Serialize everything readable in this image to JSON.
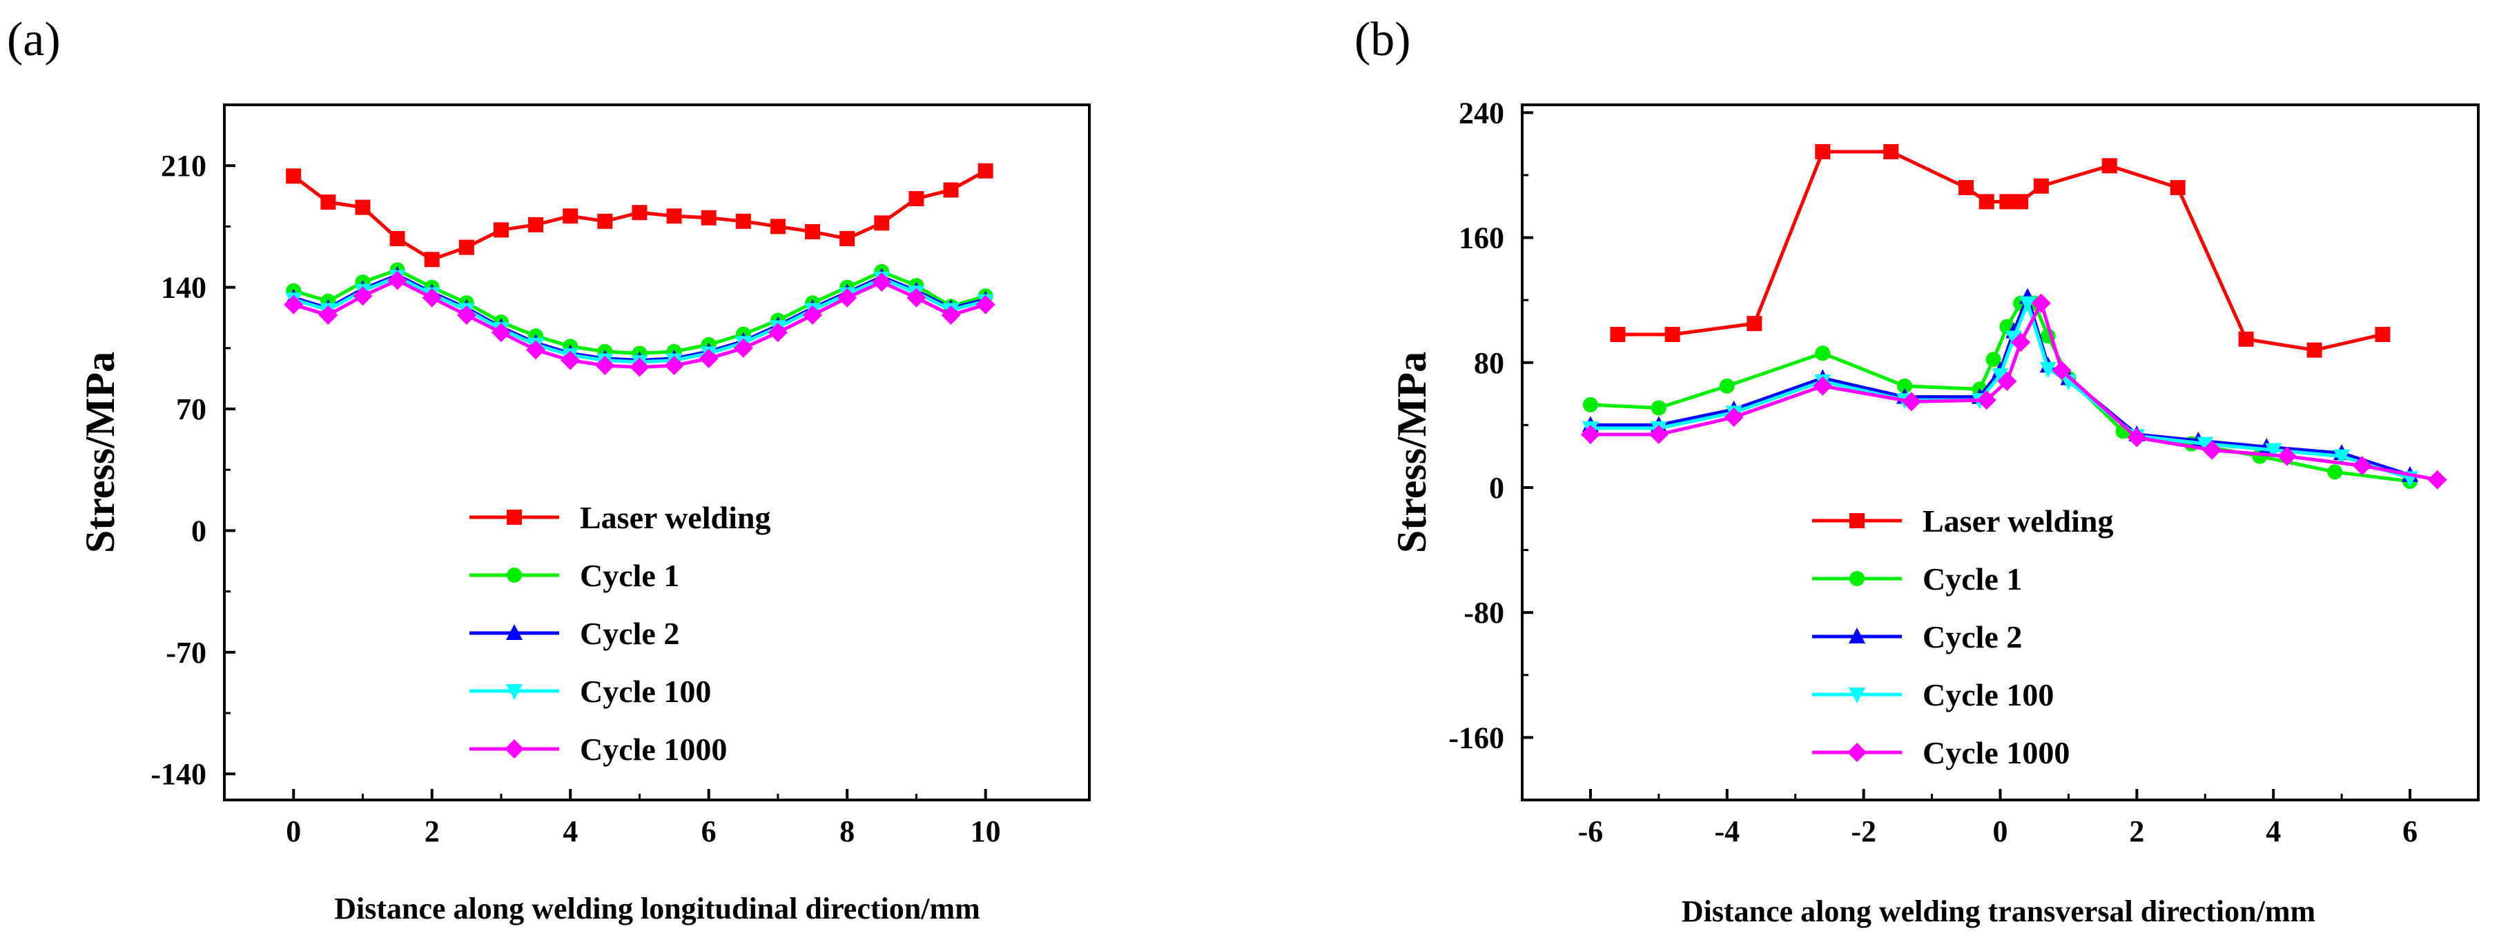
{
  "chart_data": [
    {
      "type": "line",
      "panel_label": "(a)",
      "title": "",
      "xlabel": "Distance along welding longitudinal direction/mm",
      "ylabel": "Stress/MPa",
      "xlim": [
        -1,
        11.5
      ],
      "ylim": [
        -155,
        245
      ],
      "xticks": [
        0,
        2,
        4,
        6,
        8,
        10
      ],
      "xtick_labels": [
        "0",
        "2",
        "4",
        "6",
        "8",
        "10"
      ],
      "yticks": [
        -140,
        -70,
        0,
        70,
        140,
        210
      ],
      "ytick_labels": [
        "-140",
        "-70",
        "0",
        "70",
        "140",
        "210"
      ],
      "grid": false,
      "legend_position": "bottom-center",
      "series": [
        {
          "name": "Laser welding",
          "color": "#ff0000",
          "marker": "square",
          "x": [
            0,
            0.5,
            1,
            1.5,
            2,
            2.5,
            3,
            3.5,
            4,
            4.5,
            5,
            5.5,
            6,
            6.5,
            7,
            7.5,
            8,
            8.5,
            9,
            9.5,
            10
          ],
          "y": [
            204,
            189,
            186,
            168,
            156,
            163,
            173,
            176,
            181,
            178,
            183,
            181,
            180,
            178,
            175,
            172,
            168,
            177,
            191,
            196,
            207
          ]
        },
        {
          "name": "Cycle 1",
          "color": "#00ee00",
          "marker": "circle",
          "x": [
            0,
            0.5,
            1,
            1.5,
            2,
            2.5,
            3,
            3.5,
            4,
            4.5,
            5,
            5.5,
            6,
            6.5,
            7,
            7.5,
            8,
            8.5,
            9,
            9.5,
            10
          ],
          "y": [
            138,
            132,
            143,
            150,
            140,
            131,
            120,
            112,
            106,
            103,
            102,
            103,
            107,
            113,
            121,
            131,
            140,
            149,
            141,
            129,
            135
          ]
        },
        {
          "name": "Cycle 2",
          "color": "#0000ff",
          "marker": "triangle-up",
          "x": [
            0,
            0.5,
            1,
            1.5,
            2,
            2.5,
            3,
            3.5,
            4,
            4.5,
            5,
            5.5,
            6,
            6.5,
            7,
            7.5,
            8,
            8.5,
            9,
            9.5,
            10
          ],
          "y": [
            134,
            128,
            139,
            147,
            137,
            128,
            117,
            108,
            102,
            99,
            98,
            99,
            103,
            109,
            118,
            128,
            137,
            146,
            138,
            128,
            133
          ]
        },
        {
          "name": "Cycle 100",
          "color": "#00ffff",
          "marker": "triangle-down",
          "x": [
            0,
            0.5,
            1,
            1.5,
            2,
            2.5,
            3,
            3.5,
            4,
            4.5,
            5,
            5.5,
            6,
            6.5,
            7,
            7.5,
            8,
            8.5,
            9,
            9.5,
            10
          ],
          "y": [
            133,
            127,
            138,
            146,
            136,
            127,
            116,
            107,
            101,
            98,
            97,
            98,
            102,
            108,
            117,
            127,
            136,
            145,
            137,
            127,
            132
          ]
        },
        {
          "name": "Cycle 1000",
          "color": "#ff00ff",
          "marker": "diamond",
          "x": [
            0,
            0.5,
            1,
            1.5,
            2,
            2.5,
            3,
            3.5,
            4,
            4.5,
            5,
            5.5,
            6,
            6.5,
            7,
            7.5,
            8,
            8.5,
            9,
            9.5,
            10
          ],
          "y": [
            130,
            124,
            135,
            144,
            134,
            124,
            114,
            104,
            98,
            95,
            94,
            95,
            99,
            105,
            114,
            124,
            134,
            143,
            134,
            124,
            130
          ]
        }
      ]
    },
    {
      "type": "line",
      "panel_label": "(b)",
      "title": "",
      "xlabel": "Distance along welding transversal direction/mm",
      "ylabel": "Stress/MPa",
      "xlim": [
        -7,
        7
      ],
      "ylim": [
        -200,
        245
      ],
      "xticks": [
        -6,
        -4,
        -2,
        0,
        2,
        4,
        6
      ],
      "xtick_labels": [
        "-6",
        "-4",
        "-2",
        "0",
        "2",
        "4",
        "6"
      ],
      "yticks": [
        -160,
        -80,
        0,
        80,
        160,
        240
      ],
      "ytick_labels": [
        "-160",
        "-80",
        "0",
        "80",
        "160",
        "240"
      ],
      "grid": false,
      "legend_position": "bottom-center",
      "series": [
        {
          "name": "Laser welding",
          "color": "#ff0000",
          "marker": "square",
          "x": [
            -5.6,
            -4.8,
            -3.6,
            -2.6,
            -1.6,
            -0.5,
            -0.2,
            0.1,
            0.3,
            0.6,
            1.6,
            2.6,
            3.6,
            4.6,
            5.6
          ],
          "y": [
            98,
            98,
            105,
            215,
            215,
            192,
            183,
            183,
            183,
            193,
            206,
            192,
            95,
            88,
            98
          ]
        },
        {
          "name": "Cycle 1",
          "color": "#00ee00",
          "marker": "circle",
          "x": [
            -6,
            -5,
            -4,
            -2.6,
            -1.4,
            -0.3,
            -0.1,
            0.1,
            0.3,
            0.5,
            0.7,
            1.0,
            1.8,
            2.8,
            3.8,
            4.9,
            6
          ],
          "y": [
            53,
            51,
            65,
            86,
            65,
            63,
            82,
            103,
            118,
            118,
            97,
            70,
            36,
            28,
            20,
            10,
            4
          ]
        },
        {
          "name": "Cycle 2",
          "color": "#0000ff",
          "marker": "triangle-up",
          "x": [
            -6,
            -5,
            -3.9,
            -2.6,
            -1.4,
            -0.3,
            0,
            0.2,
            0.4,
            0.7,
            1.0,
            2.0,
            2.9,
            3.9,
            5.0,
            6
          ],
          "y": [
            40,
            40,
            50,
            70,
            58,
            58,
            75,
            100,
            122,
            78,
            70,
            34,
            30,
            26,
            22,
            8
          ]
        },
        {
          "name": "Cycle 100",
          "color": "#00ffff",
          "marker": "triangle-down",
          "x": [
            -6,
            -5,
            -3.9,
            -2.6,
            -1.4,
            -0.3,
            0,
            0.2,
            0.4,
            0.7,
            1.0,
            2.0,
            3.0,
            4.0,
            5.0,
            6
          ],
          "y": [
            38,
            38,
            48,
            68,
            56,
            56,
            72,
            96,
            118,
            76,
            68,
            33,
            28,
            24,
            20,
            6
          ]
        },
        {
          "name": "Cycle 1000",
          "color": "#ff00ff",
          "marker": "diamond",
          "x": [
            -6,
            -5,
            -3.9,
            -2.6,
            -1.3,
            -0.2,
            0.1,
            0.3,
            0.6,
            0.9,
            2.0,
            3.1,
            4.2,
            5.3,
            6.4
          ],
          "y": [
            34,
            34,
            45,
            65,
            55,
            56,
            68,
            93,
            118,
            75,
            32,
            24,
            20,
            14,
            5
          ]
        }
      ]
    }
  ]
}
